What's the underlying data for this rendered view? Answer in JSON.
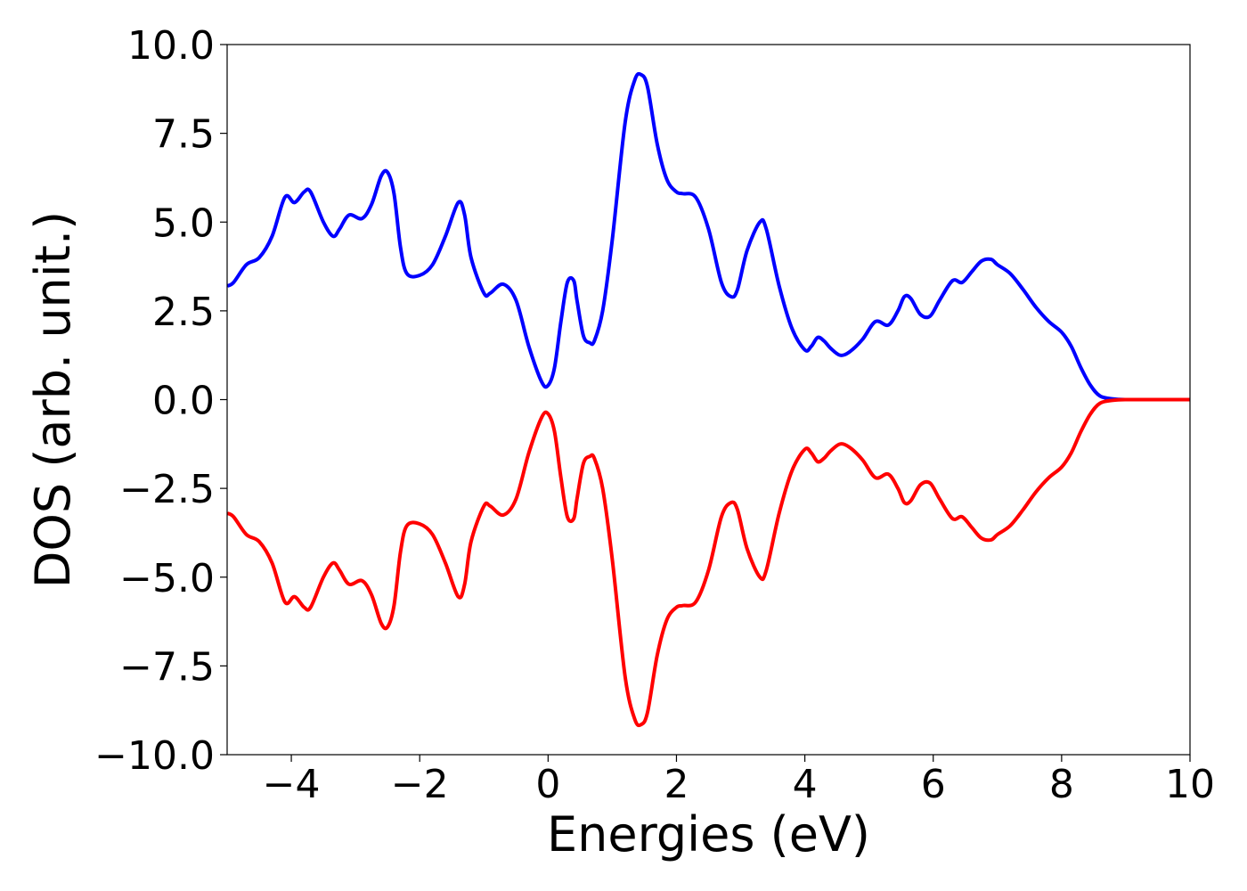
{
  "chart_data": {
    "type": "line",
    "title": "",
    "xlabel": "Energies (eV)",
    "ylabel": "DOS (arb. unit.)",
    "xlim": [
      -5,
      10
    ],
    "ylim": [
      -10,
      10
    ],
    "x_ticks": [
      -4,
      -2,
      0,
      2,
      4,
      6,
      8,
      10
    ],
    "x_tick_labels": [
      "−4",
      "−2",
      "0",
      "2",
      "4",
      "6",
      "8",
      "10"
    ],
    "y_ticks": [
      10,
      7.5,
      5,
      2.5,
      0,
      -2.5,
      -5,
      -7.5,
      -10
    ],
    "y_tick_labels": [
      "10.0",
      "7.5",
      "5.0",
      "2.5",
      "0.0",
      "−2.5",
      "−5.0",
      "−7.5",
      "−10.0"
    ],
    "grid": false,
    "series": [
      {
        "color": "#0000ff",
        "x": [
          -5,
          -4.9,
          -4.7,
          -4.5,
          -4.3,
          -4.1,
          -3.95,
          -3.8,
          -3.7,
          -3.5,
          -3.35,
          -3.25,
          -3.1,
          -2.9,
          -2.75,
          -2.6,
          -2.5,
          -2.4,
          -2.3,
          -2.2,
          -2.0,
          -1.8,
          -1.6,
          -1.4,
          -1.3,
          -1.2,
          -1.0,
          -0.9,
          -0.7,
          -0.5,
          -0.3,
          -0.1,
          0.0,
          0.1,
          0.2,
          0.3,
          0.4,
          0.45,
          0.55,
          0.65,
          0.72,
          0.85,
          1.0,
          1.2,
          1.35,
          1.45,
          1.55,
          1.7,
          1.85,
          2.0,
          2.1,
          2.3,
          2.5,
          2.7,
          2.85,
          2.95,
          3.1,
          3.3,
          3.4,
          3.6,
          3.8,
          4.0,
          4.1,
          4.2,
          4.3,
          4.4,
          4.55,
          4.7,
          4.9,
          5.1,
          5.3,
          5.45,
          5.55,
          5.65,
          5.8,
          5.95,
          6.1,
          6.3,
          6.45,
          6.6,
          6.75,
          6.9,
          7.0,
          7.2,
          7.4,
          7.6,
          7.8,
          8.0,
          8.15,
          8.3,
          8.45,
          8.6,
          8.8,
          9.0,
          9.5,
          10.0
        ],
        "y": [
          3.2,
          3.3,
          3.8,
          4.0,
          4.6,
          5.7,
          5.55,
          5.85,
          5.85,
          5.0,
          4.6,
          4.8,
          5.2,
          5.1,
          5.5,
          6.3,
          6.4,
          5.8,
          4.3,
          3.55,
          3.5,
          3.8,
          4.6,
          5.55,
          5.2,
          4.0,
          3.0,
          3.0,
          3.25,
          2.8,
          1.5,
          0.5,
          0.4,
          0.9,
          2.2,
          3.3,
          3.35,
          2.8,
          1.8,
          1.6,
          1.65,
          2.5,
          4.5,
          7.8,
          9.0,
          9.15,
          8.8,
          7.2,
          6.2,
          5.85,
          5.8,
          5.7,
          4.8,
          3.3,
          2.9,
          3.1,
          4.2,
          5.0,
          4.8,
          3.2,
          2.0,
          1.4,
          1.5,
          1.75,
          1.65,
          1.45,
          1.25,
          1.35,
          1.7,
          2.2,
          2.1,
          2.5,
          2.9,
          2.85,
          2.4,
          2.35,
          2.8,
          3.35,
          3.3,
          3.6,
          3.9,
          3.95,
          3.8,
          3.55,
          3.1,
          2.6,
          2.2,
          1.9,
          1.5,
          0.9,
          0.4,
          0.1,
          0.02,
          0.0,
          0.0,
          0.0
        ]
      },
      {
        "color": "#ff0000",
        "x": [
          -5,
          -4.9,
          -4.7,
          -4.5,
          -4.3,
          -4.1,
          -3.95,
          -3.8,
          -3.7,
          -3.5,
          -3.35,
          -3.25,
          -3.1,
          -2.9,
          -2.75,
          -2.6,
          -2.5,
          -2.4,
          -2.3,
          -2.2,
          -2.0,
          -1.8,
          -1.6,
          -1.4,
          -1.3,
          -1.2,
          -1.0,
          -0.9,
          -0.7,
          -0.5,
          -0.3,
          -0.1,
          0.0,
          0.1,
          0.2,
          0.3,
          0.4,
          0.45,
          0.55,
          0.65,
          0.72,
          0.85,
          1.0,
          1.2,
          1.35,
          1.45,
          1.55,
          1.7,
          1.85,
          2.0,
          2.1,
          2.3,
          2.5,
          2.7,
          2.85,
          2.95,
          3.1,
          3.3,
          3.4,
          3.6,
          3.8,
          4.0,
          4.1,
          4.2,
          4.3,
          4.4,
          4.55,
          4.7,
          4.9,
          5.1,
          5.3,
          5.45,
          5.55,
          5.65,
          5.8,
          5.95,
          6.1,
          6.3,
          6.45,
          6.6,
          6.75,
          6.9,
          7.0,
          7.2,
          7.4,
          7.6,
          7.8,
          8.0,
          8.15,
          8.3,
          8.45,
          8.6,
          8.8,
          9.0,
          9.5,
          10.0
        ],
        "y": [
          -3.2,
          -3.3,
          -3.8,
          -4.0,
          -4.6,
          -5.7,
          -5.55,
          -5.85,
          -5.85,
          -5.0,
          -4.6,
          -4.8,
          -5.2,
          -5.1,
          -5.5,
          -6.3,
          -6.4,
          -5.8,
          -4.3,
          -3.55,
          -3.5,
          -3.8,
          -4.6,
          -5.55,
          -5.2,
          -4.0,
          -3.0,
          -3.0,
          -3.25,
          -2.8,
          -1.5,
          -0.5,
          -0.4,
          -0.9,
          -2.2,
          -3.3,
          -3.35,
          -2.8,
          -1.8,
          -1.6,
          -1.65,
          -2.5,
          -4.5,
          -7.8,
          -9.0,
          -9.15,
          -8.8,
          -7.2,
          -6.2,
          -5.85,
          -5.8,
          -5.7,
          -4.8,
          -3.3,
          -2.9,
          -3.1,
          -4.2,
          -5.0,
          -4.8,
          -3.2,
          -2.0,
          -1.4,
          -1.5,
          -1.75,
          -1.65,
          -1.45,
          -1.25,
          -1.35,
          -1.7,
          -2.2,
          -2.1,
          -2.5,
          -2.9,
          -2.85,
          -2.4,
          -2.35,
          -2.8,
          -3.35,
          -3.3,
          -3.6,
          -3.9,
          -3.95,
          -3.8,
          -3.55,
          -3.1,
          -2.6,
          -2.2,
          -1.9,
          -1.5,
          -0.9,
          -0.4,
          -0.1,
          -0.02,
          0.0,
          0.0,
          0.0
        ]
      }
    ]
  }
}
